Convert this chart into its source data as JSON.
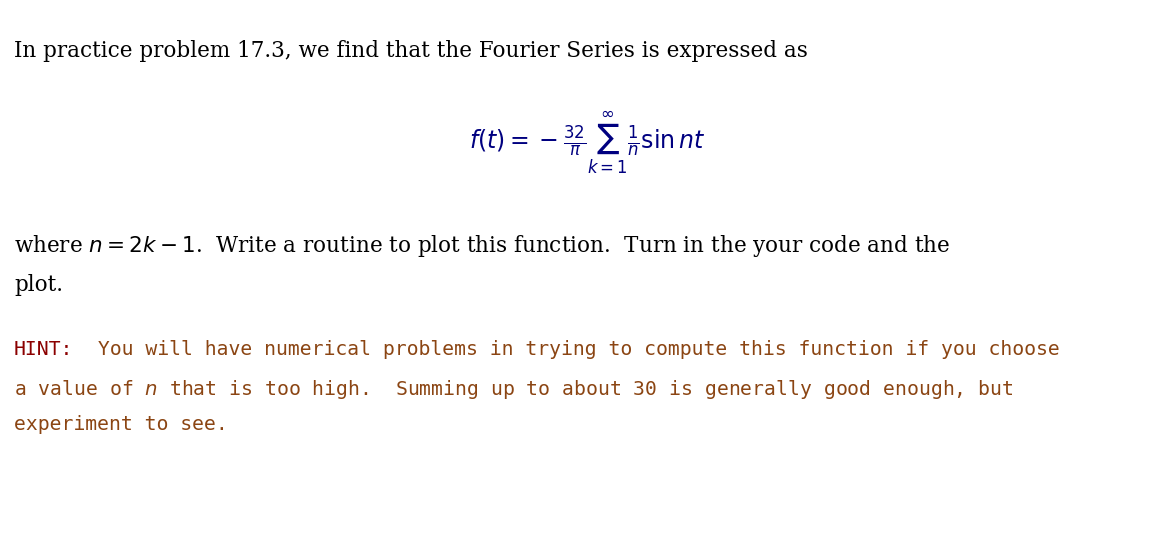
{
  "background_color": "#ffffff",
  "line1_text": "In practice problem 17.3, we find that the Fourier Series is expressed as",
  "line1_color": "#000000",
  "line3_text_a": "where ",
  "line3_italic": "n",
  "line3_text_b": " = 2",
  "line3_italic2": "k",
  "line3_text_c": " – 1.  Write a routine to plot this function.  Turn in the your code and the",
  "line3_color": "#000000",
  "line4_text": "plot.",
  "line4_color": "#000000",
  "hint_label": "HINT:",
  "hint_color": "#8B0000",
  "hint_line1": " You will have numerical problems in trying to compute this function if you choose",
  "hint_line1_color": "#8B4513",
  "hint_line2_a": "a value of ",
  "hint_line2_italic": "n",
  "hint_line2_b": " that is too high.  Summing up to about 30 is generally good enough, but",
  "hint_line2_color": "#8B4513",
  "hint_line3": "experiment to see.",
  "hint_line3_color": "#8B4513",
  "figsize": [
    11.74,
    5.36
  ],
  "dpi": 100
}
